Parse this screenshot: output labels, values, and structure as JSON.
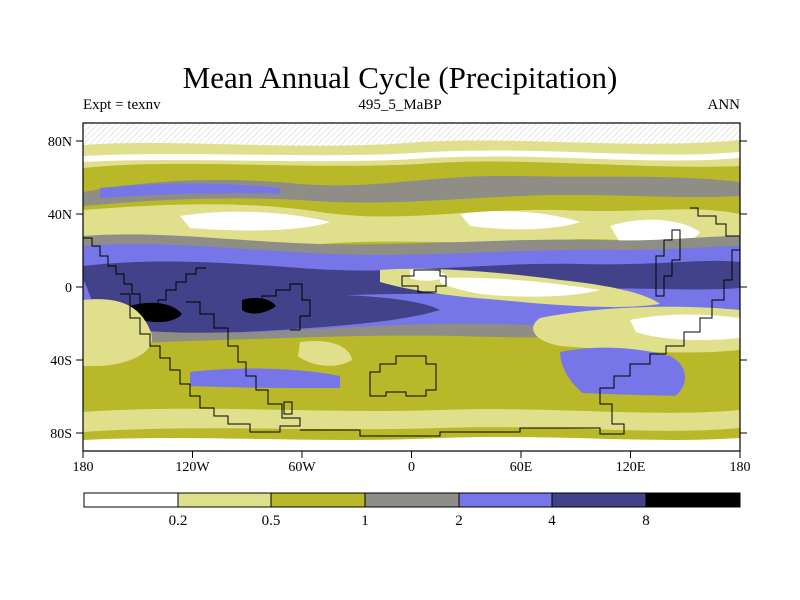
{
  "title": "Mean Annual Cycle (Precipitation)",
  "left_string": "Expt = texnv",
  "center_string": "495_5_MaBP",
  "right_string": "ANN",
  "variable": "Precipitation",
  "lat_labels": [
    "80N",
    "40N",
    "0",
    "40S",
    "80S"
  ],
  "lon_labels": [
    "180",
    "120W",
    "60W",
    "0",
    "60E",
    "120E",
    "180"
  ],
  "colorbar": {
    "labels": [
      "0.2",
      "0.5",
      "1",
      "2",
      "4",
      "8"
    ],
    "colors": [
      "#ffffff",
      "#e0e08c",
      "#b8b828",
      "#8e8e86",
      "#7676e8",
      "#42428a",
      "#000000"
    ]
  }
}
